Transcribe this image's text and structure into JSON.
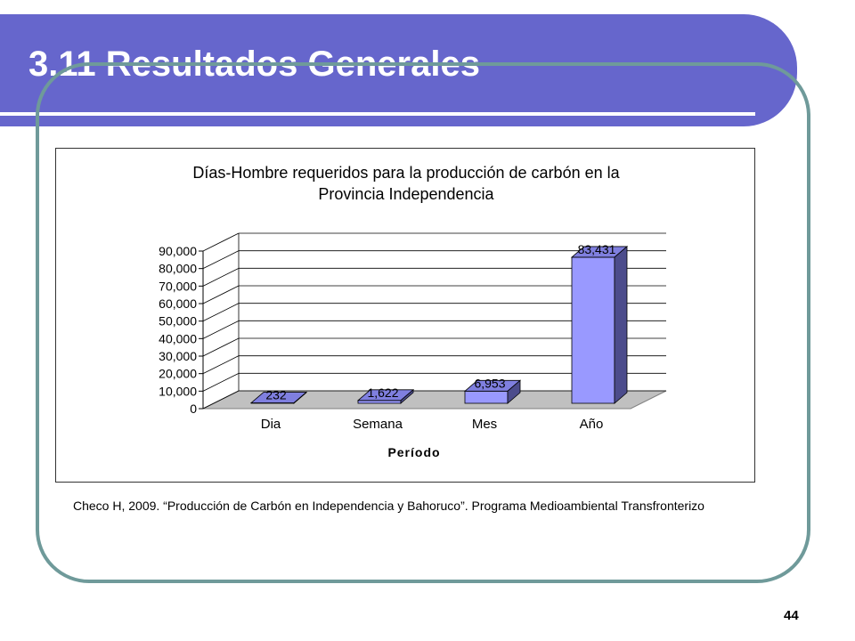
{
  "slide": {
    "title": "3.11 Resultados Generales",
    "citation": "Checo H, 2009. “Producción de Carbón en Independencia y Bahoruco”. Programa Medioambiental Transfronterizo",
    "page_number": "44"
  },
  "colors": {
    "title_bar": "#6666cc",
    "frame": "#6f9a9a",
    "bar_front": "#9999ff",
    "bar_top": "#7f7fdf",
    "bar_side": "#4c4c8c",
    "floor": "#c0c0c0"
  },
  "chart_data": {
    "type": "bar",
    "title_line1": "Días-Hombre requeridos para la producción de carbón en la",
    "title_line2": "Provincia Independencia",
    "xlabel": "Período",
    "ylabel": "",
    "categories": [
      "Dia",
      "Semana",
      "Mes",
      "Año"
    ],
    "values": [
      232,
      1622,
      6953,
      83431
    ],
    "value_labels": [
      "232",
      "1,622",
      "6,953",
      "83,431"
    ],
    "ylim": [
      0,
      90000
    ],
    "yticks": [
      0,
      10000,
      20000,
      30000,
      40000,
      50000,
      60000,
      70000,
      80000,
      90000
    ],
    "ytick_labels": [
      "0",
      "10,000",
      "20,000",
      "30,000",
      "40,000",
      "50,000",
      "60,000",
      "70,000",
      "80,000",
      "90,000"
    ],
    "grid": true,
    "legend": "none",
    "style": "3d-column"
  }
}
